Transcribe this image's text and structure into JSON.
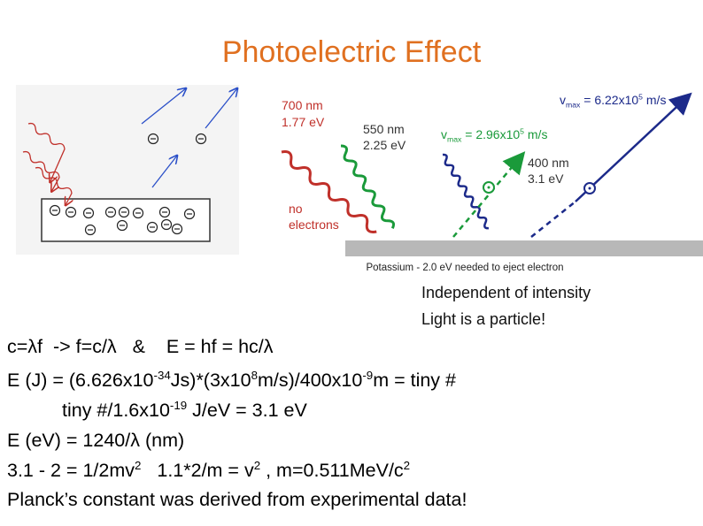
{
  "title": "Photoelectric Effect",
  "diagram": {
    "labels": [
      [
        {
          "text": "700 nm"
        }
      ],
      [
        {
          "text": "1.77 eV"
        }
      ],
      [
        {
          "text": "550 nm"
        }
      ],
      [
        {
          "text": "2.25 eV"
        }
      ],
      [
        {
          "text": "v"
        },
        {
          "sub": "max"
        },
        {
          "text": " = 2.96x10"
        },
        {
          "sup": "5"
        },
        {
          "text": " m/s"
        }
      ],
      [
        {
          "text": "400 nm"
        }
      ],
      [
        {
          "text": "3.1 eV"
        }
      ],
      [
        {
          "text": "v"
        },
        {
          "sub": "max"
        },
        {
          "text": " = 6.22x10"
        },
        {
          "sup": "5"
        },
        {
          "text": " m/s"
        }
      ],
      [
        {
          "text": "no"
        }
      ],
      [
        {
          "text": "electrons"
        }
      ]
    ],
    "caption": "Potassium - 2.0 eV needed to eject electron"
  },
  "notes": [
    "Independent of intensity",
    "Light is a particle!"
  ],
  "lines": [
    [
      {
        "text": "c=λf  -> f=c/λ   &    E = hf = hc/λ"
      }
    ],
    [
      {
        "text": "E (J) = (6.626x10"
      },
      {
        "sup": "-34"
      },
      {
        "text": "Js)*(3x10"
      },
      {
        "sup": "8"
      },
      {
        "text": "m/s)/400x10"
      },
      {
        "sup": "-9"
      },
      {
        "text": "m = tiny #"
      }
    ],
    [
      {
        "text": "tiny #/1.6x10"
      },
      {
        "sup": "-19"
      },
      {
        "text": " J/eV = 3.1 eV"
      }
    ],
    [
      {
        "text": "E (eV) = 1240/λ (nm)"
      }
    ],
    [
      {
        "text": "3.1 - 2 = 1/2mv"
      },
      {
        "sup": "2"
      },
      {
        "text": "   1.1*2/m = v"
      },
      {
        "sup": "2"
      },
      {
        "text": " , m=0.511MeV/c"
      },
      {
        "sup": "2"
      }
    ],
    [
      {
        "text": "Planck’s constant was derived from experimental data!"
      }
    ]
  ]
}
